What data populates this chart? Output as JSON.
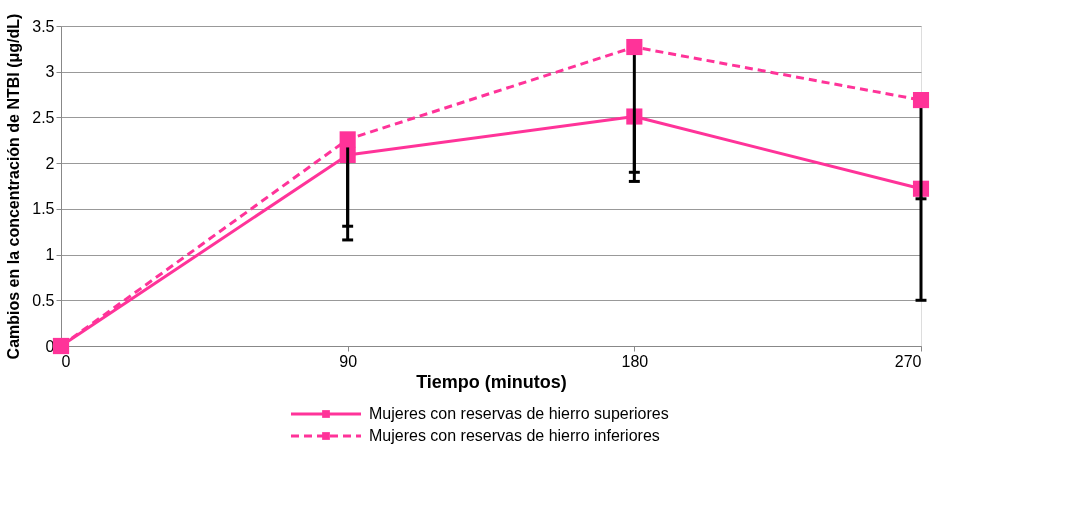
{
  "chart_data": {
    "type": "line",
    "xlabel": "Tiempo (minutos)",
    "ylabel": "Cambios en la concentración de  NTBI (μg/dL)",
    "x": [
      0,
      90,
      180,
      270
    ],
    "series": [
      {
        "name": "Mujeres con reservas de hierro superiores",
        "color": "#ff3399",
        "line_style": "solid",
        "marker": "square",
        "values": [
          0,
          2.09,
          2.51,
          1.72
        ],
        "errors": [
          null,
          [
            1.31,
            2.09
          ],
          [
            1.9,
            2.51
          ],
          [
            0.5,
            1.72
          ]
        ]
      },
      {
        "name": "Mujeres con reservas de hierro inferiores",
        "color": "#ff3399",
        "line_style": "dashed",
        "marker": "square",
        "values": [
          0,
          2.26,
          3.27,
          2.69
        ],
        "errors": [
          null,
          [
            1.16,
            2.26
          ],
          [
            1.8,
            3.27
          ],
          [
            1.61,
            2.69
          ]
        ]
      }
    ],
    "xlim": [
      0,
      270
    ],
    "xticks": [
      0,
      90,
      180,
      270
    ],
    "ylim": [
      0,
      3.5
    ],
    "yticks": [
      0,
      0.5,
      1,
      1.5,
      2,
      2.5,
      3,
      3.5
    ],
    "grid": "y",
    "legend": "bottom"
  }
}
